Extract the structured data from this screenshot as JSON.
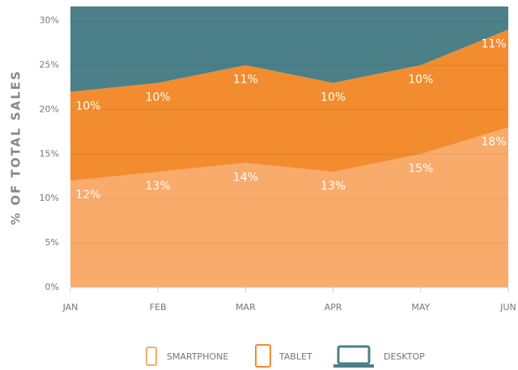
{
  "chart_data": {
    "type": "stacked-area",
    "y_label": "% OF TOTAL SALES",
    "categories": [
      "JAN",
      "FEB",
      "MAR",
      "APR",
      "MAY",
      "JUN"
    ],
    "series": [
      {
        "name": "SMARTPHONE",
        "color": "#f9ab6b",
        "values": [
          12,
          13,
          14,
          13,
          15,
          18
        ],
        "value_labels": [
          "12%",
          "13%",
          "14%",
          "13%",
          "15%",
          "18%"
        ]
      },
      {
        "name": "TABLET",
        "color": "#f28c2f",
        "values": [
          10,
          10,
          11,
          10,
          10,
          11
        ],
        "value_labels": [
          "10%",
          "10%",
          "11%",
          "10%",
          "10%",
          "11%"
        ]
      },
      {
        "name": "DESKTOP",
        "color": "#4b8088"
      }
    ],
    "ylim": [
      0,
      31.6
    ],
    "yticks": [
      {
        "value": 0,
        "label": "0%"
      },
      {
        "value": 5,
        "label": "5%"
      },
      {
        "value": 10,
        "label": "10%"
      },
      {
        "value": 15,
        "label": "15%"
      },
      {
        "value": 20,
        "label": "20%"
      },
      {
        "value": 25,
        "label": "25%"
      },
      {
        "value": 30,
        "label": "30%"
      }
    ],
    "grid": true
  }
}
